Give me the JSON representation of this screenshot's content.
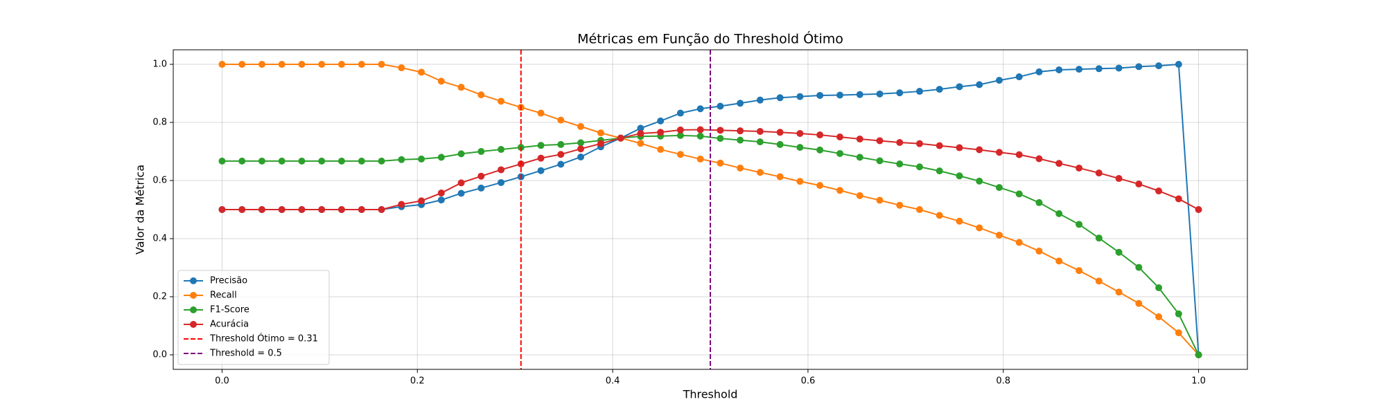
{
  "chart_data": {
    "type": "line",
    "title": "Métricas em Função do Threshold Ótimo",
    "xlabel": "Threshold",
    "ylabel": "Valor da Métrica",
    "x": [
      0,
      0.0204,
      0.0408,
      0.0612,
      0.0816,
      0.102,
      0.1224,
      0.1429,
      0.1633,
      0.1837,
      0.2041,
      0.2245,
      0.2449,
      0.2653,
      0.2857,
      0.3061,
      0.3265,
      0.3469,
      0.3673,
      0.3878,
      0.4082,
      0.4286,
      0.449,
      0.4694,
      0.4898,
      0.5102,
      0.5306,
      0.551,
      0.5714,
      0.5918,
      0.6122,
      0.6327,
      0.6531,
      0.6735,
      0.6939,
      0.7143,
      0.7347,
      0.7551,
      0.7755,
      0.7959,
      0.8163,
      0.8367,
      0.8571,
      0.8776,
      0.898,
      0.9184,
      0.9388,
      0.9592,
      0.9796,
      1
    ],
    "series": [
      {
        "name": "Precisão",
        "color": "#1f77b4",
        "values": [
          0.5,
          0.5,
          0.5,
          0.5,
          0.5,
          0.5,
          0.5,
          0.5,
          0.5,
          0.51,
          0.517,
          0.533,
          0.556,
          0.574,
          0.593,
          0.613,
          0.634,
          0.656,
          0.681,
          0.716,
          0.746,
          0.78,
          0.805,
          0.832,
          0.847,
          0.856,
          0.866,
          0.877,
          0.885,
          0.889,
          0.893,
          0.894,
          0.896,
          0.898,
          0.902,
          0.907,
          0.914,
          0.923,
          0.93,
          0.945,
          0.957,
          0.974,
          0.981,
          0.983,
          0.985,
          0.987,
          0.992,
          0.995,
          1.0,
          0.0
        ]
      },
      {
        "name": "Recall",
        "color": "#ff7f0e",
        "values": [
          1,
          1,
          1,
          1,
          1,
          1,
          1,
          1,
          1,
          0.988,
          0.973,
          0.942,
          0.921,
          0.895,
          0.873,
          0.852,
          0.832,
          0.808,
          0.786,
          0.764,
          0.746,
          0.728,
          0.707,
          0.69,
          0.674,
          0.66,
          0.643,
          0.628,
          0.613,
          0.597,
          0.583,
          0.566,
          0.548,
          0.532,
          0.515,
          0.5,
          0.48,
          0.46,
          0.437,
          0.412,
          0.387,
          0.357,
          0.323,
          0.29,
          0.254,
          0.216,
          0.177,
          0.131,
          0.076,
          0.0
        ]
      },
      {
        "name": "F1-Score",
        "color": "#2ca02c",
        "values": [
          0.667,
          0.667,
          0.667,
          0.667,
          0.667,
          0.667,
          0.667,
          0.667,
          0.667,
          0.672,
          0.674,
          0.68,
          0.692,
          0.7,
          0.707,
          0.714,
          0.721,
          0.724,
          0.73,
          0.738,
          0.746,
          0.752,
          0.753,
          0.755,
          0.753,
          0.745,
          0.739,
          0.733,
          0.724,
          0.714,
          0.705,
          0.693,
          0.68,
          0.668,
          0.657,
          0.647,
          0.633,
          0.616,
          0.598,
          0.576,
          0.554,
          0.524,
          0.486,
          0.449,
          0.402,
          0.353,
          0.301,
          0.231,
          0.141,
          0.0
        ]
      },
      {
        "name": "Acurácia",
        "color": "#d62728",
        "values": [
          0.5,
          0.5,
          0.5,
          0.5,
          0.5,
          0.5,
          0.5,
          0.5,
          0.5,
          0.518,
          0.53,
          0.557,
          0.592,
          0.615,
          0.637,
          0.657,
          0.677,
          0.69,
          0.709,
          0.727,
          0.746,
          0.762,
          0.766,
          0.774,
          0.775,
          0.773,
          0.771,
          0.769,
          0.766,
          0.762,
          0.757,
          0.75,
          0.743,
          0.737,
          0.731,
          0.727,
          0.72,
          0.713,
          0.706,
          0.697,
          0.689,
          0.675,
          0.659,
          0.643,
          0.626,
          0.607,
          0.588,
          0.564,
          0.537,
          0.5
        ]
      }
    ],
    "vlines": [
      {
        "name": "Threshold Ótimo = 0.31",
        "color": "red",
        "value": 0.3061
      },
      {
        "name": "Threshold = 0.5",
        "color": "purple",
        "value": 0.5
      }
    ],
    "xlim": [
      -0.05,
      1.05
    ],
    "ylim": [
      -0.05,
      1.05
    ],
    "xticks": [
      {
        "value": 0,
        "label": "0.0"
      },
      0.2,
      0.4,
      0.6,
      0.8,
      {
        "value": 1,
        "label": "1.0"
      }
    ],
    "yticks": [
      {
        "value": 0,
        "label": "0.0"
      },
      0.2,
      0.4,
      0.6,
      0.8,
      {
        "value": 1,
        "label": "1.0"
      }
    ],
    "grid": true,
    "legend": "lower left"
  }
}
